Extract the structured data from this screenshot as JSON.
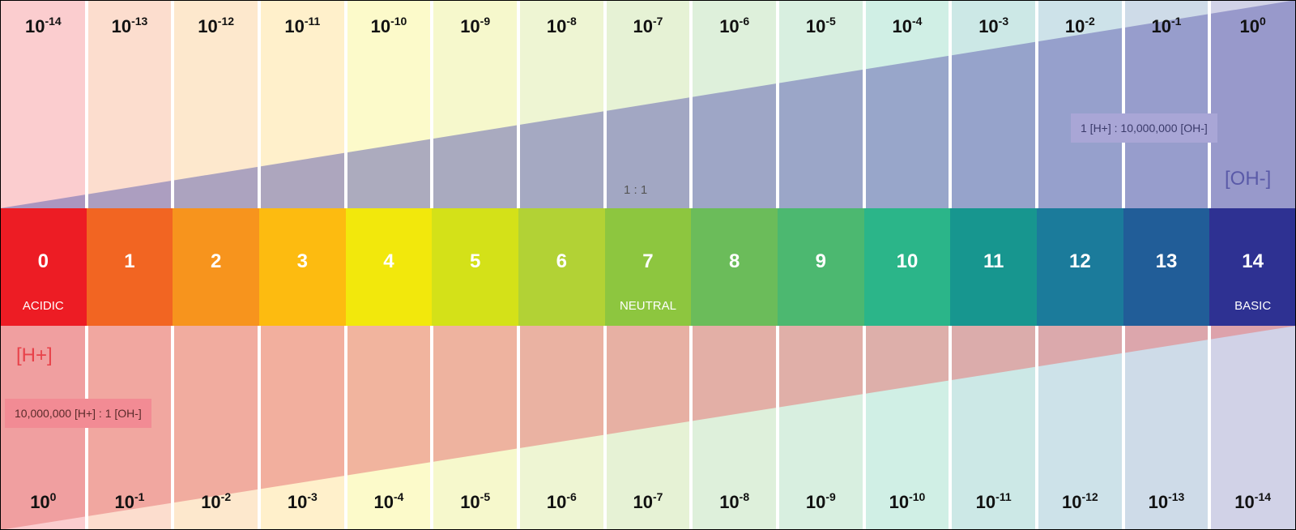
{
  "ph_scale": {
    "values": [
      "0",
      "1",
      "2",
      "3",
      "4",
      "5",
      "6",
      "7",
      "8",
      "9",
      "10",
      "11",
      "12",
      "13",
      "14"
    ],
    "colors": [
      "#ed1c24",
      "#f26522",
      "#f7941d",
      "#fdbb10",
      "#f2e80c",
      "#d4e118",
      "#b2d235",
      "#8dc63f",
      "#6bbc5a",
      "#4cb870",
      "#2bb589",
      "#17968f",
      "#1b7b9b",
      "#215d98",
      "#2e3192"
    ],
    "acidic_label": "ACIDIC",
    "neutral_label": "NEUTRAL",
    "basic_label": "BASIC"
  },
  "oh_concentration": {
    "base": "10",
    "exponents": [
      "-14",
      "-13",
      "-12",
      "-11",
      "-10",
      "-9",
      "-8",
      "-7",
      "-6",
      "-5",
      "-4",
      "-3",
      "-2",
      "-1",
      "0"
    ],
    "label": "[OH-]",
    "ratio_text": "1 [H+] : 10,000,000 [OH-]"
  },
  "h_concentration": {
    "base": "10",
    "exponents": [
      "0",
      "-1",
      "-2",
      "-3",
      "-4",
      "-5",
      "-6",
      "-7",
      "-8",
      "-9",
      "-10",
      "-11",
      "-12",
      "-13",
      "-14"
    ],
    "label": "[H+]",
    "ratio_text": "10,000,000 [H+] : 1 [OH-]"
  },
  "neutral_ratio": "1 : 1",
  "colors": {
    "oh_wedge": "#6a6ab4",
    "h_wedge": "#e87a7a",
    "oh_label": "#5a5aa8",
    "h_label": "#e8424a",
    "oh_box": "#a9a6d6",
    "h_box": "#f28b94"
  }
}
